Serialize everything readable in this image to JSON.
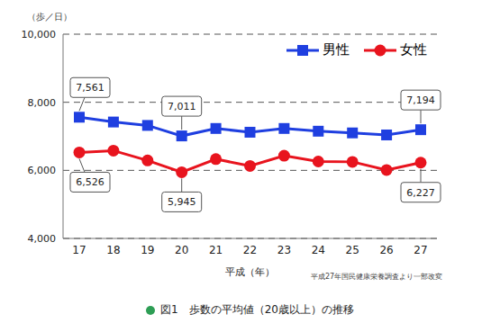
{
  "chart_data": {
    "type": "line",
    "title": "図1　歩数の平均値（20歳以上）の推移",
    "y_label": "（歩／日）",
    "x_label": "平成（年）",
    "source": "平成27年国民健康栄養調査より一部改変",
    "categories": [
      "17",
      "18",
      "19",
      "20",
      "21",
      "22",
      "23",
      "24",
      "25",
      "26",
      "27"
    ],
    "series": [
      {
        "name": "男性",
        "color": "#1f3fe0",
        "marker": "square",
        "values": [
          7561,
          7420,
          7320,
          7011,
          7230,
          7120,
          7230,
          7150,
          7100,
          7040,
          7194
        ],
        "value_labels": [
          "7,561",
          null,
          null,
          "7,011",
          null,
          null,
          null,
          null,
          null,
          null,
          "7,194"
        ]
      },
      {
        "name": "女性",
        "color": "#e8141e",
        "marker": "circle",
        "values": [
          6526,
          6580,
          6290,
          5945,
          6330,
          6130,
          6430,
          6260,
          6250,
          6010,
          6227
        ],
        "value_labels": [
          "6,526",
          null,
          null,
          "5,945",
          null,
          null,
          null,
          null,
          null,
          null,
          "6,227"
        ]
      }
    ],
    "ylim": [
      4000,
      10000
    ],
    "yticks": [
      {
        "value": 4000,
        "label": "4,000"
      },
      {
        "value": 6000,
        "label": "6,000"
      },
      {
        "value": 8000,
        "label": "8,000"
      },
      {
        "value": 10000,
        "label": "10,000"
      }
    ],
    "grid": true,
    "legend": "top-right",
    "data_labels": true
  }
}
